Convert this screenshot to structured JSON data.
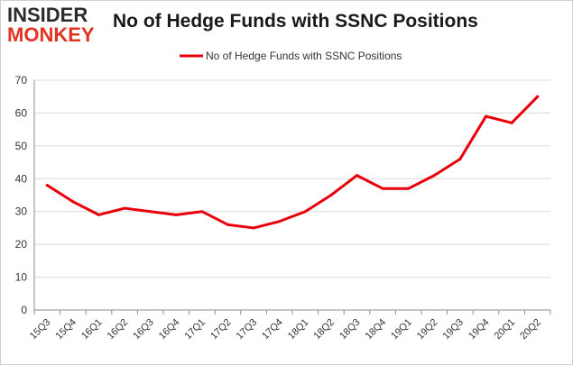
{
  "logo": {
    "line1": "INSIDER",
    "line2": "MONKEY"
  },
  "colors": {
    "series": "#e8000b",
    "axis": "#8c8c8c",
    "grid": "#d9d9d9",
    "brand_red": "#e03424"
  },
  "chart_data": {
    "type": "line",
    "title": "No of Hedge Funds with SSNC Positions",
    "xlabel": "",
    "ylabel": "",
    "ylim": [
      0,
      70
    ],
    "yticks": [
      0,
      10,
      20,
      30,
      40,
      50,
      60,
      70
    ],
    "grid": true,
    "legend_position": "top-center",
    "categories": [
      "15Q3",
      "15Q4",
      "16Q1",
      "16Q2",
      "16Q3",
      "16Q4",
      "17Q1",
      "17Q2",
      "17Q3",
      "17Q4",
      "18Q1",
      "18Q2",
      "18Q3",
      "18Q4",
      "19Q1",
      "19Q2",
      "19Q3",
      "19Q4",
      "20Q1",
      "20Q2"
    ],
    "series": [
      {
        "name": "No of Hedge Funds with SSNC Positions",
        "values": [
          38,
          33,
          29,
          31,
          30,
          29,
          30,
          26,
          25,
          27,
          30,
          35,
          41,
          37,
          37,
          41,
          46,
          59,
          57,
          65
        ]
      }
    ]
  }
}
